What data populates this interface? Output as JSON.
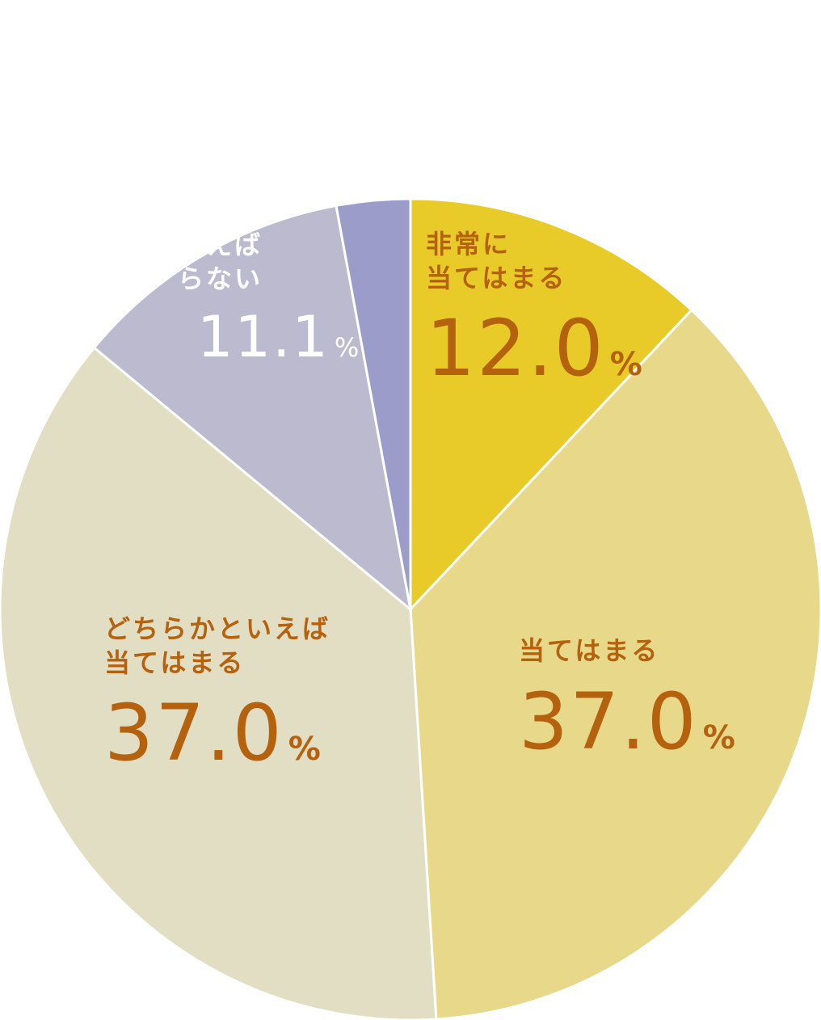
{
  "chart_data": {
    "type": "pie",
    "start": "12 o'clock",
    "direction": "clockwise",
    "slices": [
      {
        "label": "非常に\n当てはまる",
        "value": 12.0,
        "value_text": "12.0",
        "unit": "%",
        "color": "#e8cb28",
        "label_color": "#b5620f"
      },
      {
        "label": "当てはまる",
        "value": 37.0,
        "value_text": "37.0",
        "unit": "%",
        "color": "#e8d88a",
        "label_color": "#b5620f"
      },
      {
        "label": "どちらかといえば\n当てはまる",
        "value": 37.0,
        "value_text": "37.0",
        "unit": "%",
        "color": "#e1dec4",
        "label_color": "#b5620f"
      },
      {
        "label": "えば\nらない",
        "value": 11.1,
        "value_text": "11.1",
        "unit": "%",
        "color": "#bbbacf",
        "label_color": "#ffffff"
      },
      {
        "label": "",
        "value": 2.9,
        "value_text": "",
        "unit": "",
        "color": "#9c9ccb",
        "label_color": "#ffffff"
      }
    ]
  }
}
